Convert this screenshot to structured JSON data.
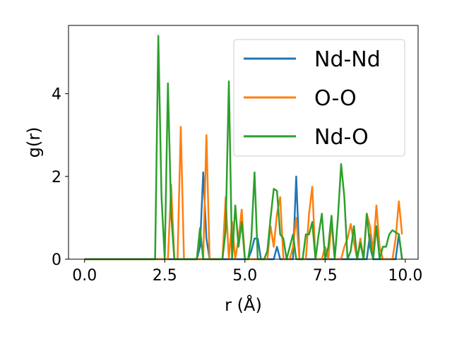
{
  "chart_data": {
    "type": "line",
    "xlabel": "r (Å)",
    "ylabel": "g(r)",
    "xlim": [
      -0.5,
      10.4
    ],
    "ylim": [
      0,
      5.65
    ],
    "xticks": [
      0.0,
      2.5,
      5.0,
      7.5,
      10.0
    ],
    "xtick_labels": [
      "0.0",
      "2.5",
      "5.0",
      "7.5",
      "10.0"
    ],
    "yticks": [
      0,
      2,
      4
    ],
    "ytick_labels": [
      "0",
      "2",
      "4"
    ],
    "grid": false,
    "legend_position": "top-right",
    "series": [
      {
        "name": "Nd-Nd",
        "color": "#1f77b4",
        "x": [
          0.0,
          3.5,
          3.6,
          3.7,
          3.8,
          3.9,
          5.1,
          5.2,
          5.3,
          5.4,
          5.5,
          5.9,
          6.0,
          6.1,
          6.5,
          6.6,
          6.7,
          8.8,
          8.9,
          9.0,
          9.7,
          9.8,
          9.9
        ],
        "values": [
          0,
          0,
          0.3,
          2.1,
          0.5,
          0,
          0,
          0.2,
          0.5,
          0.5,
          0,
          0,
          0.3,
          0,
          0,
          2.0,
          0,
          0,
          0.6,
          0,
          0,
          0.6,
          0
        ]
      },
      {
        "name": "O-O",
        "color": "#ff7f0e",
        "x": [
          0.0,
          2.6,
          2.7,
          2.8,
          2.9,
          3.0,
          3.1,
          3.7,
          3.8,
          3.9,
          4.3,
          4.4,
          4.5,
          4.6,
          4.7,
          4.8,
          4.9,
          5.0,
          5.1,
          5.7,
          5.8,
          5.9,
          6.0,
          6.1,
          6.2,
          6.4,
          6.5,
          6.6,
          6.7,
          6.9,
          7.0,
          7.1,
          7.2,
          7.4,
          7.5,
          7.6,
          7.7,
          7.8,
          8.0,
          8.1,
          8.2,
          8.3,
          8.4,
          8.5,
          8.6,
          8.7,
          8.8,
          8.9,
          9.0,
          9.1,
          9.2,
          9.3,
          9.4,
          9.5,
          9.6,
          9.7,
          9.8,
          9.9
        ],
        "values": [
          0,
          0,
          1.8,
          0,
          0,
          3.2,
          0,
          0,
          3.0,
          0,
          0,
          1.5,
          0,
          0.9,
          0,
          0.5,
          1.2,
          0,
          0,
          0,
          0.8,
          0.3,
          1.1,
          1.5,
          0,
          0,
          0.3,
          1.0,
          0,
          0,
          1.1,
          1.75,
          0,
          0,
          0.3,
          0,
          0.9,
          0,
          0,
          0.3,
          0.5,
          0.85,
          0.4,
          0,
          0.5,
          0,
          1.1,
          0.8,
          0.2,
          1.3,
          0.3,
          0,
          0,
          0,
          0,
          0.5,
          1.4,
          0.6
        ]
      },
      {
        "name": "Nd-O",
        "color": "#2ca02c",
        "x": [
          0.0,
          2.2,
          2.3,
          2.4,
          2.5,
          2.6,
          2.7,
          2.8,
          3.5,
          3.6,
          3.7,
          4.3,
          4.4,
          4.5,
          4.6,
          4.7,
          4.8,
          4.9,
          5.0,
          5.1,
          5.2,
          5.3,
          5.4,
          5.6,
          5.7,
          5.8,
          5.9,
          6.0,
          6.1,
          6.2,
          6.3,
          6.4,
          6.5,
          6.6,
          6.8,
          6.9,
          7.0,
          7.1,
          7.2,
          7.3,
          7.4,
          7.5,
          7.6,
          7.7,
          7.8,
          7.9,
          8.0,
          8.1,
          8.2,
          8.3,
          8.4,
          8.5,
          8.6,
          8.7,
          8.8,
          8.9,
          9.0,
          9.1,
          9.2,
          9.3,
          9.4,
          9.5,
          9.6,
          9.7,
          9.8,
          9.9
        ],
        "values": [
          0,
          0,
          5.4,
          1.5,
          0,
          4.25,
          1.1,
          0,
          0,
          0.75,
          0,
          0,
          0.7,
          4.3,
          0,
          1.3,
          0.3,
          0.9,
          0,
          0,
          0.5,
          2.1,
          0,
          0,
          0.2,
          1.0,
          1.7,
          1.65,
          0.6,
          0.5,
          0,
          0.3,
          0.6,
          0,
          0,
          0.6,
          0.6,
          0.9,
          0,
          0.6,
          1.1,
          0,
          0.3,
          1.05,
          0,
          1.0,
          2.3,
          1.5,
          0,
          0.2,
          0.8,
          0,
          0.4,
          0,
          1.1,
          0.3,
          0,
          0.8,
          0,
          0.3,
          0.3,
          0.6,
          0.7,
          0.65,
          0.6,
          0
        ]
      }
    ]
  }
}
